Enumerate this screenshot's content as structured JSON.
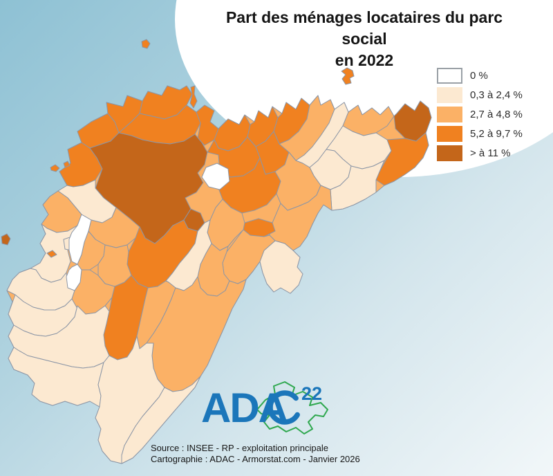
{
  "title": {
    "line1": "Part des ménages locataires du parc social",
    "line2": "en 2022"
  },
  "legend": {
    "items": [
      {
        "label": "0 %",
        "color": "#ffffff"
      },
      {
        "label": "0,3 à 2,4 %",
        "color": "#fce9d1"
      },
      {
        "label": "2,7 à 4,8 %",
        "color": "#fbb166"
      },
      {
        "label": "5,2 à 9,7 %",
        "color": "#f08120"
      },
      {
        "label": "> à 11 %",
        "color": "#c4661a"
      }
    ]
  },
  "logo": {
    "text": "ADA",
    "number": "22",
    "blue": "#1b76ba",
    "green": "#2fa84f"
  },
  "sources": {
    "line1": "Source : INSEE - RP - exploitation principale",
    "line2": "Cartographie : ADAC - Armorstat.com - Janvier 2026"
  },
  "chart_data": {
    "type": "choropleth",
    "title": "Part des ménages locataires du parc social en 2022",
    "legend_position": "top-right",
    "classes": [
      {
        "label": "0 %",
        "color": "#ffffff"
      },
      {
        "label": "0,3 à 2,4 %",
        "color": "#fce9d1"
      },
      {
        "label": "2,7 à 4,8 %",
        "color": "#fbb166"
      },
      {
        "label": "5,2 à 9,7 %",
        "color": "#f08120"
      },
      {
        "label": "> à 11 %",
        "color": "#c4661a"
      }
    ],
    "source": "INSEE - RP - exploitation principale",
    "cartography": "ADAC - Armorstat.com - Janvier 2026"
  },
  "map": {
    "stroke": "#8c96a6",
    "class_colors": {
      "W": "#ffffff",
      "C": "#fce9d1",
      "L": "#fbb166",
      "O": "#f08120",
      "D": "#c4661a"
    },
    "base": "97,268 86,248 102,236 98,216 118,206 112,190 132,176 156,164 154,148 178,154 184,138 206,146 214,132 234,138 242,124 260,130 270,124 278,136 270,152 284,162 296,152 310,160 304,176 316,186 330,172 346,180 354,166 368,176 374,160 388,170 394,154 408,164 414,148 428,158 436,142 448,152 460,138 464,152 478,144 484,158 498,148 504,162 518,152 524,166 538,156 550,166 562,154 570,168 574,164 586,150 600,160 608,146 620,156 624,170 616,192 620,210 612,228 600,242 586,252 570,262 556,268 544,278 528,288 512,296 496,302 480,304 468,296 460,308 452,324 444,342 434,356 424,362 434,372 430,386 438,396 432,412 420,424 406,416 396,422 386,410 380,394 376,378 366,392 356,404 352,418 344,432 336,446 330,460 324,474 316,492 308,510 300,528 290,544 282,560 268,576 254,592 242,606 230,620 218,634 206,648 192,662 176,670 160,666 148,652 142,636 146,620 138,604 144,588 130,580 112,586 94,580 76,586 58,580 46,570 50,554 40,542 20,534 12,518 20,502 12,486 20,470 12,454 18,436 10,420 18,404 28,394 44,388 58,380 66,366 58,352 66,338 60,324 70,310 62,296 72,284 84,276",
    "regions": [
      {
        "c": "O",
        "p": "97,268 86,248 102,236 98,216 118,206 130,214 140,228 148,244 138,260 120,268 106,270"
      },
      {
        "c": "O",
        "p": "118,206 112,190 132,176 156,164 166,176 172,192 160,204 142,210 130,214"
      },
      {
        "c": "O",
        "p": "156,164 154,148 178,154 184,138 206,146 202,164 190,176 172,192 166,176"
      },
      {
        "c": "O",
        "p": "206,146 214,132 234,138 242,124 260,130 270,124 278,136 270,152 256,166 238,172 220,168 202,164"
      },
      {
        "c": "O",
        "p": "202,164 220,168 238,172 256,166 270,152 284,162 290,178 282,194 266,204 246,208 226,206 206,202 190,196 172,192 190,176"
      },
      {
        "c": "O",
        "p": "284,162 296,152 310,160 304,176 316,186 310,202 296,210 286,200 290,178"
      },
      {
        "c": "D",
        "p": "148,244 140,228 130,214 142,210 160,204 172,192 190,196 206,202 226,206 246,208 266,204 282,194 292,206 300,220 296,238 286,250 294,264 284,278 268,286 276,302 266,318 250,326 238,340 224,352 210,344 202,328 188,316 168,300 150,286 138,272"
      },
      {
        "c": "O",
        "p": "310,202 316,186 330,172 346,180 354,166 362,180 358,198 346,212 330,218 316,214"
      },
      {
        "c": "O",
        "p": "362,180 368,176 374,160 388,170 394,154 402,170 396,190 384,204 370,212 358,198"
      },
      {
        "c": "O",
        "p": "402,170 408,164 414,148 428,158 436,142 448,152 444,172 432,190 418,202 404,208 396,190"
      },
      {
        "c": "O",
        "p": "300,220 310,202 316,214 330,218 346,212 358,198 370,212 376,228 368,244 352,254 334,256 318,250 316,224"
      },
      {
        "c": "O",
        "p": "370,212 384,204 396,190 404,208 418,220 412,238 398,248 384,252 376,228"
      },
      {
        "c": "L",
        "p": "444,172 448,152 460,138 464,152 478,144 484,158 476,178 464,196 452,212 440,224 428,232 418,220 404,208 418,202 432,190"
      },
      {
        "c": "C",
        "p": "484,158 498,148 504,162 496,182 484,200 472,216 460,232 448,242 438,236 428,232 440,224 452,212 464,196 476,178"
      },
      {
        "c": "L",
        "p": "504,162 518,152 524,166 538,156 550,166 562,154 570,168 560,182 544,192 526,196 510,190 496,182"
      },
      {
        "c": "D",
        "p": "570,168 574,164 586,150 600,160 608,146 620,156 624,170 616,192 602,204 586,200 572,186"
      },
      {
        "c": "O",
        "p": "616,192 620,210 612,228 600,242 586,252 570,262 556,268 544,260 550,246 558,232 566,218 560,202 586,200 602,204"
      },
      {
        "c": "C",
        "p": "496,182 510,190 526,196 544,192 560,202 566,218 556,232 540,240 524,244 508,240 496,230 484,218 472,216 484,200"
      },
      {
        "c": "C",
        "p": "472,216 484,218 496,230 508,240 504,256 492,268 478,274 464,268 454,254 448,242 460,232"
      },
      {
        "c": "C",
        "p": "508,240 524,244 540,240 556,232 550,246 544,260 544,278 528,288 512,296 496,302 480,304 478,274 492,268 504,256"
      },
      {
        "c": "O",
        "p": "316,250 334,256 352,254 368,244 376,228 384,252 398,248 406,262 400,280 386,296 368,304 350,308 334,300 322,288 316,272"
      },
      {
        "c": "L",
        "p": "398,248 412,238 418,220 428,232 438,236 448,242 454,254 464,268 458,282 446,292 432,298 416,304 406,294 400,280 406,262"
      },
      {
        "c": "L",
        "p": "458,282 464,268 478,274 480,304 468,296 460,308 452,324 444,342 434,356 424,362 412,352 398,348 390,340 394,322 400,308 406,294 416,304 432,298 446,292"
      },
      {
        "c": "C",
        "p": "398,348 412,352 424,362 434,372 430,386 438,396 432,412 420,424 406,416 396,422 386,410 380,394 376,378 382,362"
      },
      {
        "c": "O",
        "p": "354,322 374,316 394,322 398,334 382,342 362,340 352,332"
      },
      {
        "c": "L",
        "p": "322,288 334,300 350,308 354,322 352,332 340,344 330,356 318,362 306,352 300,336 304,318 312,300"
      },
      {
        "c": "L",
        "p": "352,332 362,340 382,342 390,340 398,348 382,362 376,378 366,392 356,404 344,410 332,406 324,396 322,380 328,364 340,348"
      },
      {
        "c": "L",
        "p": "306,352 318,362 330,356 328,364 322,380 324,396 332,406 326,420 314,428 300,426 290,416 286,400 290,382 298,366"
      },
      {
        "c": "C",
        "p": "138,272 150,286 168,300 162,314 148,322 132,318 118,310 108,298 98,286 84,276 97,268 106,270 120,268 138,260"
      },
      {
        "c": "L",
        "p": "62,296 72,284 84,276 98,286 108,298 118,310 112,326 98,334 82,336 68,330 60,324 70,310"
      },
      {
        "c": "L",
        "p": "132,318 148,322 162,314 168,300 188,316 202,328 196,344 184,354 168,358 152,354 138,346 128,334"
      },
      {
        "c": "L",
        "p": "128,334 138,346 152,354 150,370 142,382 130,390 118,390 112,382 118,368 122,350"
      },
      {
        "c": "O",
        "p": "202,328 210,344 224,352 238,340 250,326 266,318 272,330 286,334 282,352 272,366 260,380 250,394 240,406 228,414 214,416 200,410 190,398 184,382 186,364 196,344"
      },
      {
        "c": "C",
        "p": "282,352 286,334 296,322 304,318 300,336 306,352 298,366 290,382 286,400 278,412 266,420 254,416 244,408 240,406 250,394 260,380 272,366"
      },
      {
        "c": "D",
        "p": "266,318 276,302 290,308 296,322 286,334 272,330"
      },
      {
        "c": "L",
        "p": "152,354 168,358 184,354 186,364 184,382 190,398 180,408 166,414 152,410 142,398 142,382 150,370"
      },
      {
        "c": "C",
        "p": "58,352 66,338 60,324 68,330 82,336 98,334 112,326 104,336 100,346 98,362 102,378 96,394 88,404 74,408 60,402 52,390 44,388 58,380 66,366"
      },
      {
        "c": "C",
        "p": "28,394 44,388 52,390 60,402 74,408 88,404 96,394 98,414 108,420 104,432 94,442 80,448 64,448 48,444 34,436 22,426 10,420 18,404"
      },
      {
        "c": "C",
        "p": "12,454 22,426 34,436 48,444 64,448 80,448 94,442 104,432 112,442 108,458 96,472 82,482 66,486 50,484 34,478 20,470"
      },
      {
        "c": "L",
        "p": "108,420 116,408 118,390 130,390 142,398 152,410 166,414 162,430 152,442 138,452 124,454 112,446 104,432"
      },
      {
        "c": "O",
        "p": "166,414 180,408 190,398 200,410 214,416 210,432 206,450 202,468 198,486 192,504 184,516 170,520 158,514 152,500 150,484 154,468 158,450 162,430"
      },
      {
        "c": "L",
        "p": "214,416 228,414 240,406 244,408 254,416 248,432 240,450 232,466 222,482 212,496 202,504 198,486 202,468 206,450 210,432"
      },
      {
        "c": "L",
        "p": "254,416 266,420 278,412 286,400 290,416 300,426 314,428 326,420 332,406 344,410 356,404 352,418 344,432 336,446 330,460 324,474 316,492 308,510 300,528 290,544 278,556 264,564 250,566 238,560 228,548 222,532 220,514 222,496 212,496 222,482 232,466 240,450 248,432"
      },
      {
        "c": "C",
        "p": "20,470 34,478 50,484 66,486 82,482 96,472 108,458 112,442 124,454 138,452 152,442 158,450 154,468 150,484 152,500 158,514 150,524 136,530 120,532 104,530 88,526 72,522 56,518 40,514 26,506 20,502 12,486"
      },
      {
        "c": "C",
        "p": "12,518 20,502 26,506 40,514 56,518 72,522 88,526 104,530 120,532 136,530 150,524 146,540 142,556 146,572 144,588 130,580 112,586 94,580 76,586 58,580 46,570 50,554 40,542 20,534"
      },
      {
        "c": "C",
        "p": "158,514 170,520 184,516 192,504 198,486 202,504 212,496 222,496 220,514 222,532 228,548 238,560 230,574 218,588 206,602 196,616 188,630 180,644 176,658 176,670 160,666 148,652 142,636 146,620 138,604 144,588 146,572 142,556 146,540 150,524"
      },
      {
        "c": "C",
        "p": "238,560 250,566 264,564 278,556 290,544 282,560 268,576 254,592 242,606 230,620 218,634 206,648 192,662 176,670 176,658 180,644 188,630 196,616 206,602 218,588 230,574"
      },
      {
        "c": "C",
        "p": "92,346 104,342 110,352 104,362 94,360"
      },
      {
        "c": "W",
        "p": "112,326 118,310 132,318 128,334 122,350 118,368 112,382 104,378 100,362 100,346 104,336"
      },
      {
        "c": "W",
        "p": "104,386 112,382 118,390 116,408 108,420 98,416 96,400 100,390"
      },
      {
        "c": "W",
        "p": "298,242 314,236 330,244 332,262 318,274 302,270 292,256"
      },
      {
        "c": "D",
        "p": "2,342 10,338 15,345 11,354 3,352"
      },
      {
        "c": "O",
        "p": "205,60 212,57 217,63 213,70 206,68"
      },
      {
        "c": "O",
        "p": "276,126 282,124 281,136 285,146 280,156 275,149 278,137"
      },
      {
        "c": "O",
        "p": "494,103 502,98 510,102 512,110 506,113 508,120 500,122 495,114 500,108"
      },
      {
        "c": "O",
        "p": "73,242 80,238 86,243 81,248 74,246"
      },
      {
        "c": "O",
        "p": "92,236 98,233 101,239 94,242"
      },
      {
        "c": "O",
        "p": "68,366 76,362 82,368 74,372"
      }
    ]
  }
}
